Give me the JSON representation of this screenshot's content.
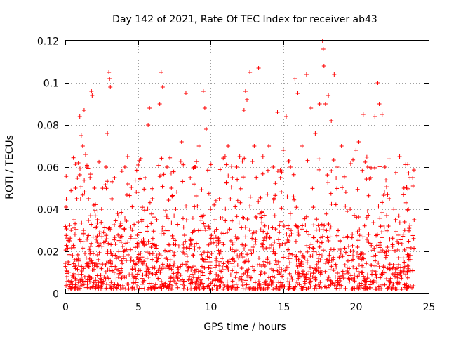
{
  "chart_data": {
    "type": "scatter",
    "title": "Day 142 of 2021, Rate Of TEC Index for receiver ab43",
    "xlabel": "GPS time / hours",
    "ylabel": "ROTI / TECUs",
    "xlim": [
      0,
      25
    ],
    "ylim": [
      0,
      0.12
    ],
    "xticks": [
      0,
      5,
      10,
      15,
      20,
      25
    ],
    "xtick_labels": [
      "0",
      "5",
      "10",
      "15",
      "20",
      "25"
    ],
    "yticks": [
      0,
      0.02,
      0.04,
      0.06,
      0.08,
      0.1,
      0.12
    ],
    "ytick_labels": [
      "0",
      "0.02",
      "0.04",
      "0.06",
      "0.08",
      "0.1",
      "0.12"
    ],
    "grid": true,
    "marker": "plus",
    "color": "#ff0000",
    "series": [
      {
        "name": "ROTI",
        "points": [
          [
            0.05,
            0.041
          ],
          [
            0.1,
            0.008
          ],
          [
            0.2,
            0.015
          ],
          [
            0.3,
            0.025
          ],
          [
            0.4,
            0.03
          ],
          [
            0.5,
            0.018
          ],
          [
            0.6,
            0.035
          ],
          [
            0.7,
            0.05
          ],
          [
            0.8,
            0.045
          ],
          [
            0.9,
            0.062
          ],
          [
            1.0,
            0.084
          ],
          [
            1.1,
            0.075
          ],
          [
            1.2,
            0.07
          ],
          [
            1.3,
            0.087
          ],
          [
            1.4,
            0.066
          ],
          [
            1.5,
            0.06
          ],
          [
            1.6,
            0.045
          ],
          [
            1.7,
            0.055
          ],
          [
            1.8,
            0.096
          ],
          [
            1.85,
            0.094
          ],
          [
            2.0,
            0.05
          ],
          [
            2.2,
            0.035
          ],
          [
            2.5,
            0.04
          ],
          [
            2.8,
            0.06
          ],
          [
            2.9,
            0.076
          ],
          [
            3.0,
            0.105
          ],
          [
            3.05,
            0.102
          ],
          [
            3.1,
            0.098
          ],
          [
            3.2,
            0.045
          ],
          [
            3.4,
            0.055
          ],
          [
            3.6,
            0.038
          ],
          [
            3.9,
            0.058
          ],
          [
            4.1,
            0.06
          ],
          [
            4.3,
            0.052
          ],
          [
            4.6,
            0.03
          ],
          [
            5.0,
            0.048
          ],
          [
            5.2,
            0.064
          ],
          [
            5.5,
            0.055
          ],
          [
            5.7,
            0.08
          ],
          [
            5.8,
            0.088
          ],
          [
            6.0,
            0.045
          ],
          [
            6.3,
            0.035
          ],
          [
            6.5,
            0.09
          ],
          [
            6.6,
            0.105
          ],
          [
            6.7,
            0.098
          ],
          [
            7.0,
            0.06
          ],
          [
            7.3,
            0.05
          ],
          [
            7.6,
            0.04
          ],
          [
            8.0,
            0.072
          ],
          [
            8.3,
            0.095
          ],
          [
            8.6,
            0.055
          ],
          [
            8.9,
            0.06
          ],
          [
            9.2,
            0.07
          ],
          [
            9.5,
            0.096
          ],
          [
            9.6,
            0.088
          ],
          [
            9.7,
            0.078
          ],
          [
            10.0,
            0.04
          ],
          [
            10.3,
            0.035
          ],
          [
            10.6,
            0.045
          ],
          [
            11.0,
            0.065
          ],
          [
            11.2,
            0.07
          ],
          [
            11.5,
            0.055
          ],
          [
            11.8,
            0.06
          ],
          [
            12.0,
            0.065
          ],
          [
            12.3,
            0.087
          ],
          [
            12.4,
            0.096
          ],
          [
            12.5,
            0.092
          ],
          [
            12.7,
            0.105
          ],
          [
            13.0,
            0.07
          ],
          [
            13.3,
            0.107
          ],
          [
            13.6,
            0.065
          ],
          [
            14.0,
            0.07
          ],
          [
            14.3,
            0.06
          ],
          [
            14.6,
            0.086
          ],
          [
            14.8,
            0.055
          ],
          [
            15.0,
            0.068
          ],
          [
            15.2,
            0.084
          ],
          [
            15.5,
            0.06
          ],
          [
            15.8,
            0.102
          ],
          [
            16.0,
            0.095
          ],
          [
            16.3,
            0.07
          ],
          [
            16.6,
            0.104
          ],
          [
            16.9,
            0.088
          ],
          [
            17.2,
            0.076
          ],
          [
            17.5,
            0.09
          ],
          [
            17.7,
            0.12
          ],
          [
            17.75,
            0.116
          ],
          [
            17.8,
            0.108
          ],
          [
            17.9,
            0.09
          ],
          [
            18.1,
            0.094
          ],
          [
            18.3,
            0.082
          ],
          [
            18.5,
            0.104
          ],
          [
            18.7,
            0.06
          ],
          [
            19.0,
            0.07
          ],
          [
            19.3,
            0.048
          ],
          [
            19.6,
            0.04
          ],
          [
            20.0,
            0.068
          ],
          [
            20.2,
            0.072
          ],
          [
            20.5,
            0.085
          ],
          [
            20.8,
            0.06
          ],
          [
            21.0,
            0.055
          ],
          [
            21.3,
            0.084
          ],
          [
            21.5,
            0.1
          ],
          [
            21.6,
            0.09
          ],
          [
            21.8,
            0.085
          ],
          [
            22.0,
            0.06
          ],
          [
            22.3,
            0.045
          ],
          [
            22.6,
            0.04
          ],
          [
            23.0,
            0.065
          ],
          [
            23.3,
            0.05
          ],
          [
            23.6,
            0.04
          ],
          [
            23.9,
            0.055
          ],
          [
            24.0,
            0.035
          ]
        ]
      }
    ],
    "dense_band": {
      "x_range": [
        0,
        24
      ],
      "typical_min": 0.002,
      "typical_max": 0.03
    }
  }
}
